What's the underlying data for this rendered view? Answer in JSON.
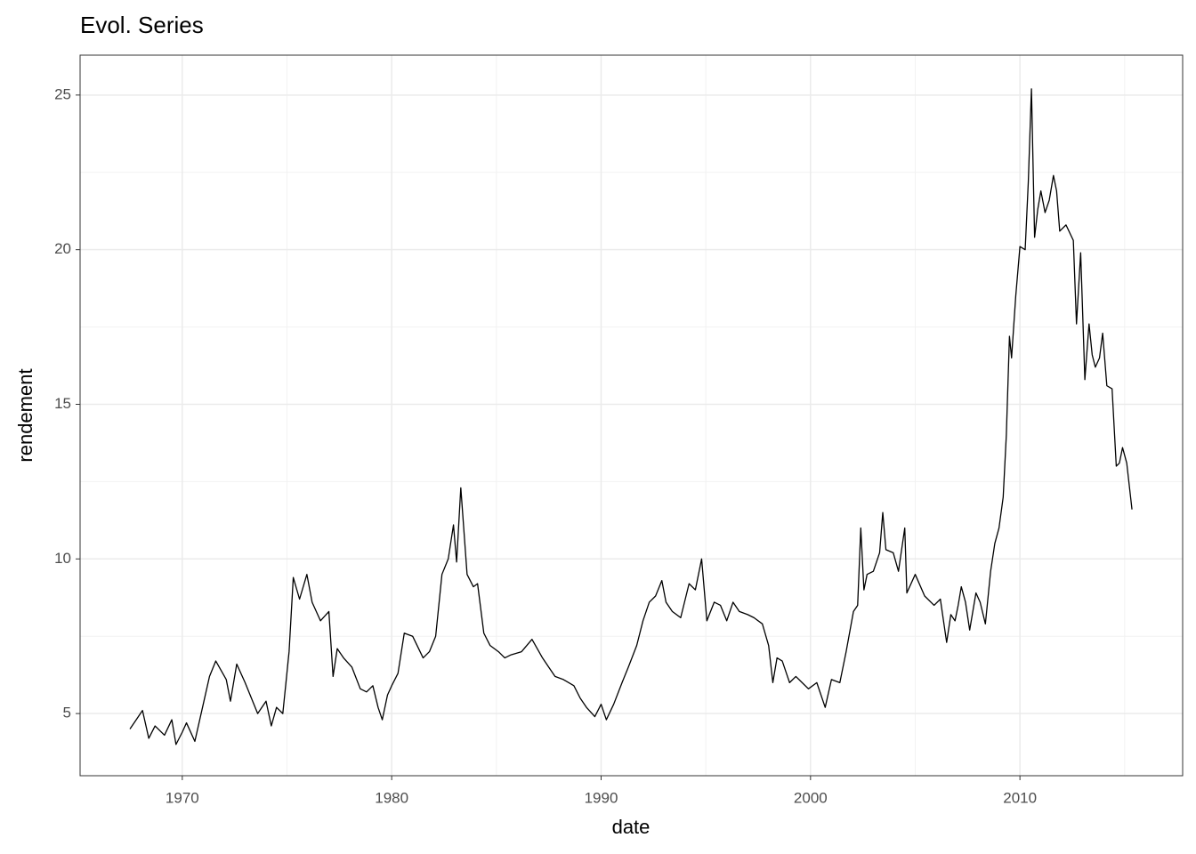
{
  "chart_data": {
    "type": "line",
    "title": "Evol. Series",
    "x_label": "date",
    "y_label": "rendement",
    "xlim": [
      1965.12,
      2017.77
    ],
    "ylim": [
      2.99,
      26.29
    ],
    "xticks": [
      1970,
      1980,
      1990,
      2000,
      2010
    ],
    "yticks": [
      5,
      10,
      15,
      20,
      25
    ],
    "xminor": [
      1975,
      1985,
      1995,
      2005,
      2015
    ],
    "yminor": [
      7.5,
      12.5,
      17.5,
      22.5
    ],
    "grid": true,
    "color": "#000000",
    "x": [
      1967.5,
      1967.8,
      1968.1,
      1968.4,
      1968.7,
      1969.15,
      1969.5,
      1969.7,
      1970.0,
      1970.2,
      1970.6,
      1971.0,
      1971.3,
      1971.6,
      1972.1,
      1972.3,
      1972.6,
      1973.0,
      1973.3,
      1973.6,
      1974.0,
      1974.25,
      1974.5,
      1974.8,
      1975.1,
      1975.3,
      1975.6,
      1975.95,
      1976.2,
      1976.6,
      1977.0,
      1977.2,
      1977.4,
      1977.7,
      1978.1,
      1978.5,
      1978.8,
      1979.1,
      1979.35,
      1979.55,
      1979.8,
      1980.0,
      1980.3,
      1980.6,
      1981.0,
      1981.5,
      1981.8,
      1982.1,
      1982.4,
      1982.7,
      1982.95,
      1983.1,
      1983.3,
      1983.6,
      1983.9,
      1984.1,
      1984.4,
      1984.7,
      1985.1,
      1985.4,
      1985.7,
      1986.2,
      1986.7,
      1987.2,
      1987.5,
      1987.8,
      1988.2,
      1988.7,
      1989.0,
      1989.3,
      1989.7,
      1990.0,
      1990.25,
      1990.6,
      1991.0,
      1991.3,
      1991.7,
      1992.0,
      1992.3,
      1992.6,
      1992.9,
      1993.1,
      1993.4,
      1993.8,
      1994.2,
      1994.5,
      1994.8,
      1995.05,
      1995.4,
      1995.7,
      1996.0,
      1996.3,
      1996.6,
      1997.0,
      1997.3,
      1997.7,
      1998.0,
      1998.2,
      1998.4,
      1998.65,
      1999.0,
      1999.3,
      1999.6,
      1999.9,
      2000.3,
      2000.7,
      2001.0,
      2001.4,
      2001.7,
      2002.05,
      2002.25,
      2002.4,
      2002.55,
      2002.7,
      2003.0,
      2003.3,
      2003.45,
      2003.6,
      2003.95,
      2004.2,
      2004.5,
      2004.6,
      2005.0,
      2005.45,
      2005.9,
      2006.2,
      2006.5,
      2006.7,
      2006.9,
      2007.05,
      2007.2,
      2007.4,
      2007.6,
      2007.9,
      2008.1,
      2008.35,
      2008.6,
      2008.8,
      2009.0,
      2009.2,
      2009.35,
      2009.5,
      2009.6,
      2009.8,
      2010.0,
      2010.25,
      2010.4,
      2010.55,
      2010.7,
      2010.85,
      2011.0,
      2011.2,
      2011.4,
      2011.6,
      2011.75,
      2011.9,
      2012.2,
      2012.55,
      2012.7,
      2012.9,
      2013.1,
      2013.3,
      2013.45,
      2013.6,
      2013.8,
      2013.95,
      2014.15,
      2014.4,
      2014.6,
      2014.75,
      2014.9,
      2015.1,
      2015.35
    ],
    "values": [
      4.5,
      4.8,
      5.1,
      4.2,
      4.6,
      4.3,
      4.8,
      4.0,
      4.4,
      4.7,
      4.1,
      5.3,
      6.2,
      6.7,
      6.1,
      5.4,
      6.6,
      6.0,
      5.5,
      5.0,
      5.4,
      4.6,
      5.2,
      5.0,
      7.0,
      9.4,
      8.7,
      9.5,
      8.6,
      8.0,
      8.3,
      6.2,
      7.1,
      6.8,
      6.5,
      5.8,
      5.7,
      5.9,
      5.2,
      4.8,
      5.6,
      5.9,
      6.3,
      7.6,
      7.5,
      6.8,
      7.0,
      7.5,
      9.5,
      10.0,
      11.1,
      9.9,
      12.3,
      9.5,
      9.1,
      9.2,
      7.6,
      7.2,
      7.0,
      6.8,
      6.9,
      7.0,
      7.4,
      6.8,
      6.5,
      6.2,
      6.1,
      5.9,
      5.5,
      5.2,
      4.9,
      5.3,
      4.8,
      5.3,
      6.0,
      6.5,
      7.2,
      8.0,
      8.6,
      8.8,
      9.3,
      8.6,
      8.3,
      8.1,
      9.2,
      9.0,
      10.0,
      8.0,
      8.6,
      8.5,
      8.0,
      8.6,
      8.3,
      8.2,
      8.1,
      7.9,
      7.2,
      6.0,
      6.8,
      6.7,
      6.0,
      6.2,
      6.0,
      5.8,
      6.0,
      5.2,
      6.1,
      6.0,
      7.0,
      8.3,
      8.5,
      11.0,
      9.0,
      9.5,
      9.6,
      10.2,
      11.5,
      10.3,
      10.2,
      9.6,
      11.0,
      8.9,
      9.5,
      8.8,
      8.5,
      8.7,
      7.3,
      8.2,
      8.0,
      8.5,
      9.1,
      8.6,
      7.7,
      8.9,
      8.6,
      7.9,
      9.6,
      10.5,
      11.0,
      12.0,
      14.0,
      17.2,
      16.5,
      18.5,
      20.1,
      20.0,
      22.2,
      25.2,
      20.4,
      21.3,
      21.9,
      21.2,
      21.6,
      22.4,
      21.9,
      20.6,
      20.8,
      20.3,
      17.6,
      19.9,
      15.8,
      17.6,
      16.6,
      16.2,
      16.5,
      17.3,
      15.6,
      15.5,
      13.0,
      13.1,
      13.6,
      13.1,
      11.6
    ]
  }
}
